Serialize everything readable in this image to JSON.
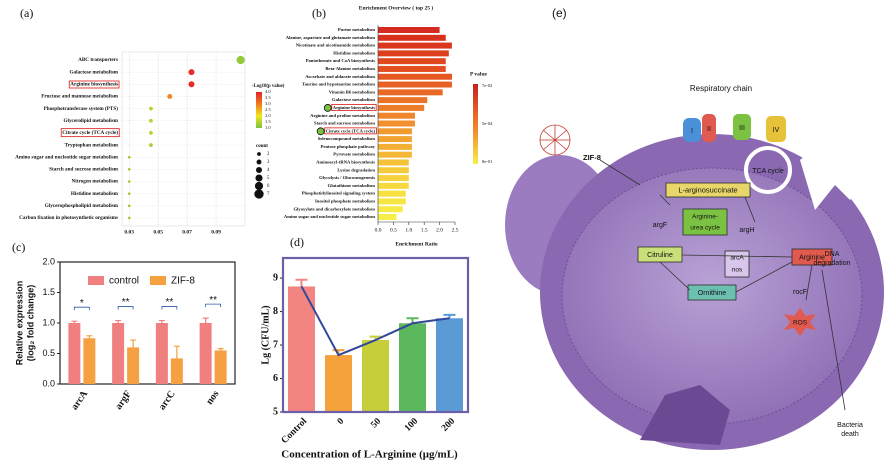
{
  "chart_data": [
    {
      "type": "dot",
      "panel_label": "(a)",
      "categories": [
        "ABC transporters",
        "Galactose metabolism",
        "Arginine biosynthesis",
        "Fructose and mannose metabolism",
        "Phosphotransferase system (PTS)",
        "Glycerolipid metabolism",
        "Citrate cycle (TCA cycle)",
        "Tryptophan metabolism",
        "Amino sugar and nucleotide sugar metabolism",
        "Starch and sucrose metabolism",
        "Nitrogen metabolism",
        "Histidine metabolism",
        "Glycerophospholipid metabolism",
        "Carbon fixation in photosynthetic organisms"
      ],
      "values": [
        0.107,
        0.073,
        0.073,
        0.058,
        0.045,
        0.045,
        0.045,
        0.045,
        0.03,
        0.03,
        0.03,
        0.03,
        0.03,
        0.03
      ],
      "sizes": [
        6,
        4,
        4,
        3,
        2,
        2,
        2,
        2,
        1,
        1,
        1,
        1,
        1,
        1
      ],
      "color_values": [
        1.2,
        3.9,
        3.9,
        2.9,
        1.5,
        1.5,
        1.5,
        1.4,
        1.3,
        1.3,
        1.3,
        1.3,
        1.3,
        1.3
      ],
      "xlim": [
        0.025,
        0.11
      ],
      "xticks": [
        0.03,
        0.05,
        0.07,
        0.09
      ],
      "grid": true,
      "color_title": "-Log10(p value)",
      "clim": [
        1,
        4
      ],
      "colormap": [
        "#7cc242",
        "#f2e61c",
        "#f07d1d",
        "#e5232a"
      ],
      "color_ticks": [
        {
          "value": 4,
          "label": "4.0"
        },
        3.5,
        {
          "value": 3,
          "label": "3.0"
        },
        2.5,
        {
          "value": 2,
          "label": "2.0"
        },
        1.5,
        {
          "value": 1,
          "label": "1.0"
        }
      ],
      "size_title": "count",
      "size_ticks": [
        2,
        3,
        4,
        5,
        6,
        7
      ],
      "highlight": [
        2,
        6
      ],
      "highlight_color": "#e0302a"
    },
    {
      "type": "hbar",
      "panel_label": "(b)",
      "title": "Enrichment Overview ( top 25 )",
      "categories": [
        "Purine metabolism",
        "Alanine, aspartate and glutamate metabolism",
        "Nicotinate and nicotinamide metabolism",
        "Histidine metabolism",
        "Pantothenate and CoA biosynthesis",
        "Beta-Alanine metabolism",
        "Ascorbate and aldarate metabolism",
        "Taurine and hypotaurine metabolism",
        "Vitamin B6 metabolism",
        "Galactose metabolism",
        "Arginine biosynthesis",
        "Arginine and proline metabolism",
        "Starch and sucrose metabolism",
        "Citrate cycle (TCA cycle)",
        "Selenocompound metabolism",
        "Pentose phosphate pathway",
        "Pyruvate metabolism",
        "Aminoacyl-tRNA biosynthesis",
        "Lysine degradation",
        "Glycolysis / Gluconeogenesis",
        "Glutathione metabolism",
        "Phosphatidylinositol signaling system",
        "Inositol phosphate metabolism",
        "Glyoxylate and dicarboxylate metabolism",
        "Amino sugar and nucleotide sugar metabolism"
      ],
      "values": [
        2.0,
        2.2,
        2.4,
        2.3,
        2.2,
        2.2,
        2.4,
        2.4,
        2.1,
        1.6,
        1.5,
        1.2,
        1.2,
        1.1,
        1.1,
        1.1,
        1.1,
        1.0,
        1.0,
        1.0,
        1.0,
        0.9,
        0.9,
        0.8,
        0.6
      ],
      "colors": [
        "#d42a20",
        "#d8301f",
        "#db371f",
        "#de3f1f",
        "#e1471f",
        "#e34f20",
        "#e55822",
        "#e76124",
        "#e96a26",
        "#eb7328",
        "#ed7c2a",
        "#ef862c",
        "#f0902e",
        "#f19a30",
        "#f2a432",
        "#f3ae34",
        "#f4b836",
        "#f5c138",
        "#f5ca3a",
        "#f6d23c",
        "#f6d93e",
        "#f7e040",
        "#f7e642",
        "#f8ea44",
        "#f8ee48"
      ],
      "xlim": [
        0,
        2.5
      ],
      "xticks": [
        {
          "value": 0,
          "label": "0.0"
        },
        0.5,
        {
          "value": 1,
          "label": "1.0"
        },
        1.5,
        {
          "value": 2,
          "label": "2.0"
        },
        2.5
      ],
      "xlabel": "Enrichment Ratio",
      "legend_title": "P value",
      "legend_labels": [
        "7e-02",
        "5e-04",
        "8e-01"
      ],
      "colorbar": [
        "#c8201e",
        "#f07a28",
        "#f8ee48"
      ],
      "highlight": [
        10,
        13
      ],
      "highlight_color": "#e0302a"
    },
    {
      "type": "groupbar",
      "panel_label": "(c)",
      "categories": [
        "arcA",
        "argF",
        "arcC",
        "nos"
      ],
      "series": [
        {
          "name": "control",
          "color": "#f08080",
          "values": [
            1.0,
            1.0,
            1.0,
            1.0
          ],
          "errors": [
            0.03,
            0.04,
            0.04,
            0.08
          ]
        },
        {
          "name": "ZIF-8",
          "color": "#f5a142",
          "values": [
            0.75,
            0.6,
            0.42,
            0.55
          ],
          "errors": [
            0.04,
            0.12,
            0.2,
            0.03
          ]
        }
      ],
      "annotations": [
        "*",
        "**",
        "**",
        "**"
      ],
      "ylim": [
        0,
        2
      ],
      "yticks": [
        {
          "value": 0,
          "label": "0.0"
        },
        0.5,
        {
          "value": 1,
          "label": "1.0"
        },
        1.5,
        {
          "value": 2,
          "label": "2.0"
        }
      ],
      "ylabel": [
        "Relative expression",
        "(log₂ fold change)"
      ],
      "annotation_color": "#2c5aa0"
    },
    {
      "type": "barline",
      "panel_label": "(d)",
      "categories": [
        "Control",
        "0",
        "50",
        "100",
        "200"
      ],
      "values": [
        8.75,
        6.7,
        7.15,
        7.65,
        7.8
      ],
      "errors": [
        0.2,
        0.15,
        0.1,
        0.15,
        0.1
      ],
      "colors": [
        "#f28482",
        "#f5a13c",
        "#c6cf3a",
        "#5cb85c",
        "#5b9bd5"
      ],
      "line_color": "#34489a",
      "frame_color": "#6a5fa8",
      "ylim": [
        5,
        9.6
      ],
      "yticks": [
        5,
        6,
        7,
        8,
        9
      ],
      "ylabel": "Lg (CFU/mL)",
      "xlabel": "Concentration of  L-Arginine (μg/mL)"
    }
  ],
  "diagram": {
    "panel_label": "(e)",
    "respiratory_chain": "Respiratory chain",
    "complexes": [
      "I",
      "II",
      "III",
      "IV"
    ],
    "zif8": "ZIF-8",
    "arginosuccinate": "L-arginosuccinate",
    "tca": "TCA cycle",
    "argF": "argF",
    "urea_cycle": [
      "Arginine-",
      "urea cycle"
    ],
    "argH": "argH",
    "citruline": "Citruline",
    "arcA": "arcA",
    "nos": "nos",
    "arginine": "Arginine",
    "rocF": "rocF",
    "ornithine": "Ornithine",
    "ros": "ROS",
    "dna": [
      "DNA",
      "degradation"
    ],
    "death": [
      "Bacteria",
      "death"
    ]
  }
}
